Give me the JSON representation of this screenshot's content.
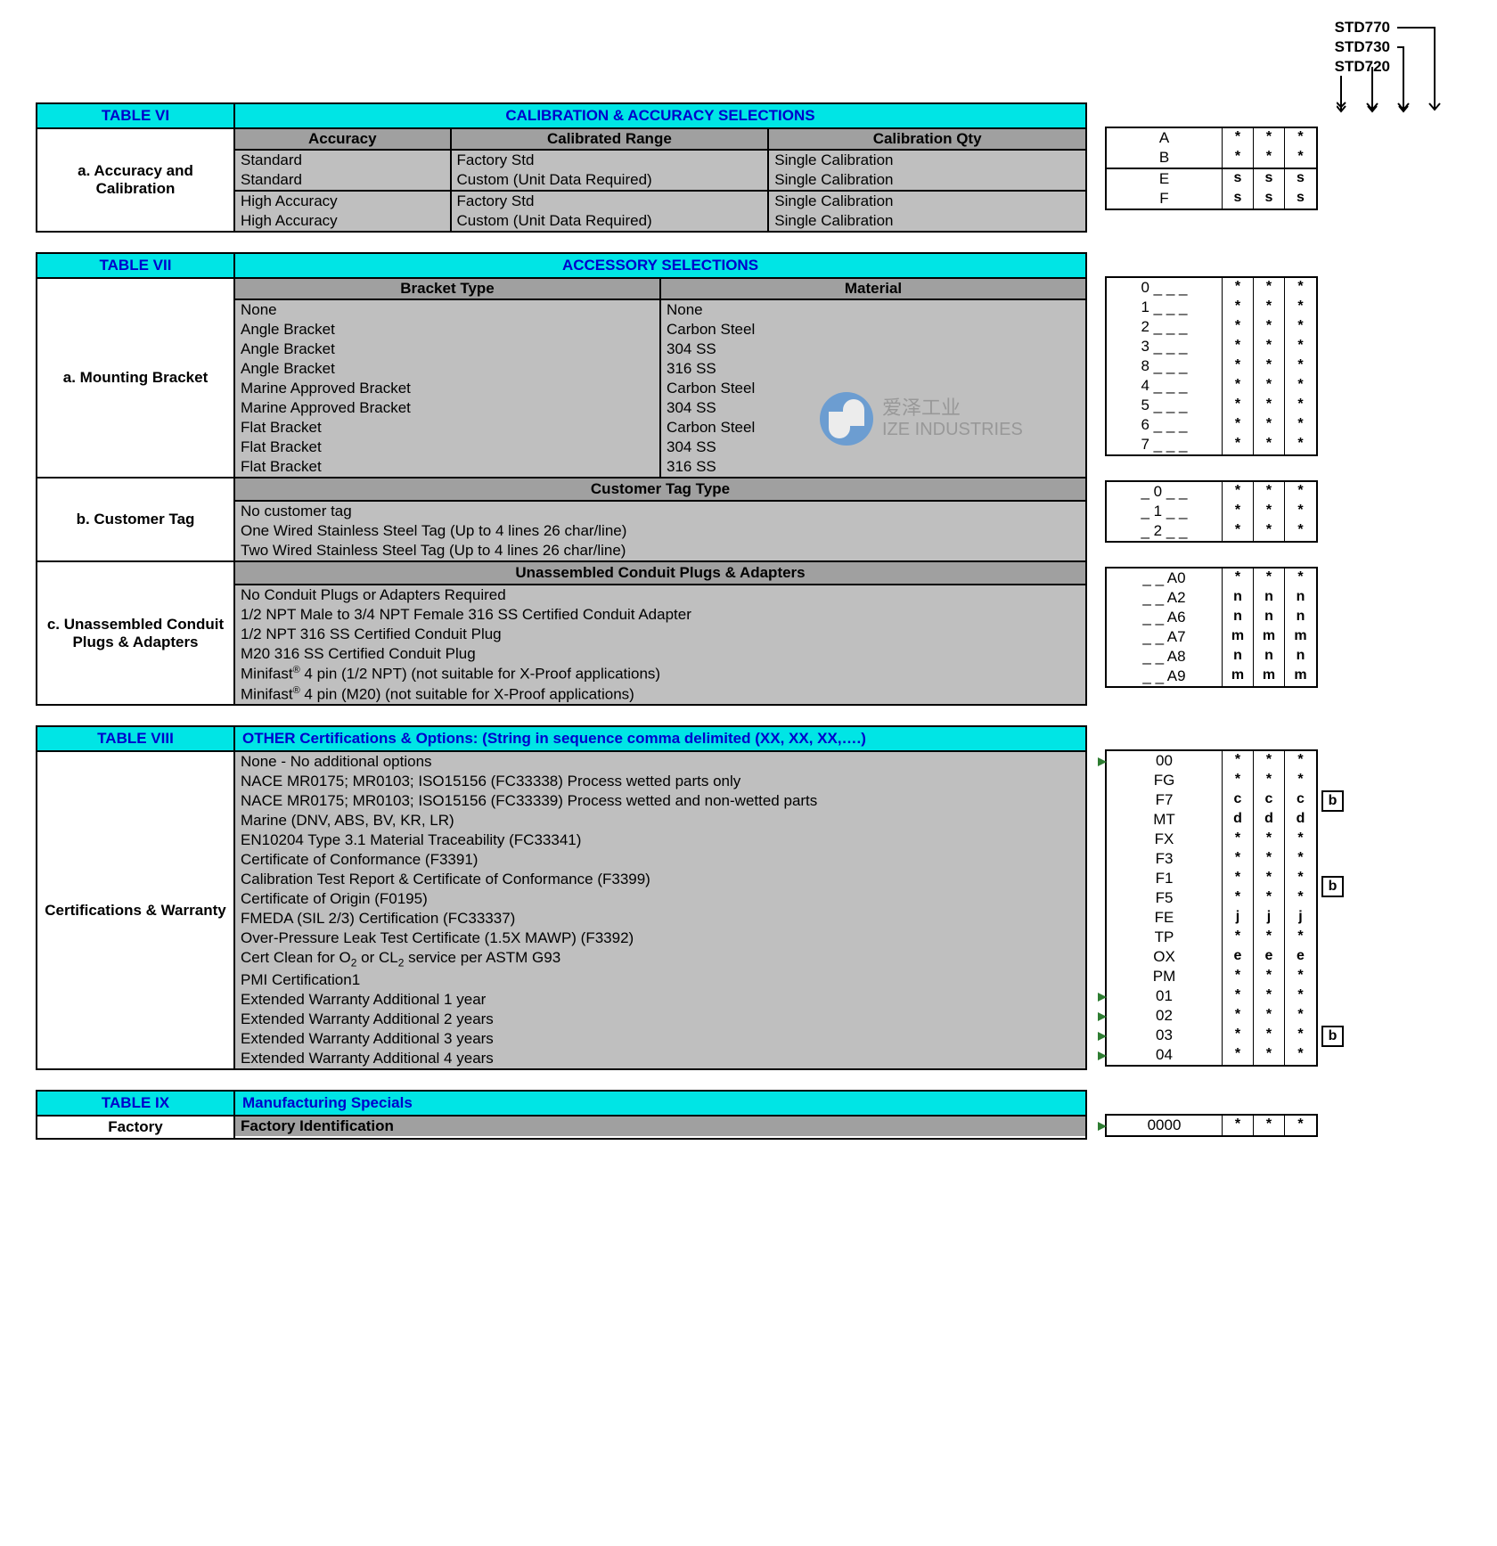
{
  "colors": {
    "cyan": "#00E5E5",
    "blue_text": "#0000CC",
    "grey_hdr": "#A0A0A0",
    "grey_body": "#BFBFBF",
    "border": "#000000",
    "green": "#2E7D32",
    "wm_blue": "#4A90D9",
    "wm_grey": "#888888"
  },
  "header": {
    "models": [
      "STD770",
      "STD730",
      "STD720"
    ]
  },
  "table6": {
    "title": "TABLE VI",
    "banner": "CALIBRATION & ACCURACY SELECTIONS",
    "section": "a. Accuracy and Calibration",
    "cols": [
      "Accuracy",
      "Calibrated Range",
      "Calibration Qty"
    ],
    "rows": [
      {
        "c": [
          "Standard",
          "Factory Std",
          "Single Calibration"
        ],
        "code": "A",
        "m": [
          "*",
          "*",
          "*"
        ]
      },
      {
        "c": [
          "Standard",
          "Custom (Unit Data Required)",
          "Single Calibration"
        ],
        "code": "B",
        "m": [
          "*",
          "*",
          "*"
        ],
        "sep": true
      },
      {
        "c": [
          "High Accuracy",
          "Factory Std",
          "Single Calibration"
        ],
        "code": "E",
        "m": [
          "s",
          "s",
          "s"
        ]
      },
      {
        "c": [
          "High Accuracy",
          "Custom (Unit Data Required)",
          "Single Calibration"
        ],
        "code": "F",
        "m": [
          "s",
          "s",
          "s"
        ]
      }
    ]
  },
  "table7": {
    "title": "TABLE VII",
    "banner": "ACCESSORY SELECTIONS",
    "secA": {
      "label": "a. Mounting Bracket",
      "cols": [
        "Bracket Type",
        "Material"
      ],
      "rows": [
        {
          "c": [
            "None",
            "None"
          ],
          "code": "0 _ _ _",
          "m": [
            "*",
            "*",
            "*"
          ]
        },
        {
          "c": [
            "Angle Bracket",
            "Carbon Steel"
          ],
          "code": "1 _ _ _",
          "m": [
            "*",
            "*",
            "*"
          ]
        },
        {
          "c": [
            "Angle Bracket",
            "304 SS"
          ],
          "code": "2 _ _ _",
          "m": [
            "*",
            "*",
            "*"
          ]
        },
        {
          "c": [
            "Angle Bracket",
            "316 SS"
          ],
          "code": "3 _ _ _",
          "m": [
            "*",
            "*",
            "*"
          ]
        },
        {
          "c": [
            "Marine Approved  Bracket",
            "Carbon Steel"
          ],
          "code": "8 _ _ _",
          "m": [
            "*",
            "*",
            "*"
          ]
        },
        {
          "c": [
            "Marine Approved Bracket",
            "304 SS"
          ],
          "code": "4 _ _ _",
          "m": [
            "*",
            "*",
            "*"
          ]
        },
        {
          "c": [
            "Flat Bracket",
            "Carbon Steel"
          ],
          "code": "5 _ _ _",
          "m": [
            "*",
            "*",
            "*"
          ]
        },
        {
          "c": [
            "Flat Bracket",
            "304 SS"
          ],
          "code": "6 _ _ _",
          "m": [
            "*",
            "*",
            "*"
          ]
        },
        {
          "c": [
            "Flat Bracket",
            "316 SS"
          ],
          "code": "7 _ _ _",
          "m": [
            "*",
            "*",
            "*"
          ]
        }
      ]
    },
    "secB": {
      "label": "b. Customer Tag",
      "hdr": "Customer Tag Type",
      "rows": [
        {
          "c": "No customer tag",
          "code": "_ 0 _ _",
          "m": [
            "*",
            "*",
            "*"
          ]
        },
        {
          "c": "One Wired Stainless Steel Tag (Up to 4 lines 26 char/line)",
          "code": "_ 1 _ _",
          "m": [
            "*",
            "*",
            "*"
          ]
        },
        {
          "c": "Two Wired Stainless Steel Tag (Up to 4 lines 26 char/line)",
          "code": "_ 2 _ _",
          "m": [
            "*",
            "*",
            "*"
          ]
        }
      ]
    },
    "secC": {
      "label": "c. Unassembled Conduit Plugs & Adapters",
      "hdr": "Unassembled Conduit Plugs & Adapters",
      "rows": [
        {
          "c": "No Conduit Plugs or Adapters Required",
          "code": "_ _ A0",
          "m": [
            "*",
            "*",
            "*"
          ]
        },
        {
          "c": "1/2 NPT Male to 3/4 NPT Female 316 SS Certified Conduit Adapter",
          "code": "_ _ A2",
          "m": [
            "n",
            "n",
            "n"
          ]
        },
        {
          "c": "1/2 NPT 316 SS Certified Conduit Plug",
          "code": "_ _ A6",
          "m": [
            "n",
            "n",
            "n"
          ]
        },
        {
          "c": "M20 316 SS Certified Conduit Plug",
          "code": "_ _ A7",
          "m": [
            "m",
            "m",
            "m"
          ]
        },
        {
          "html": "Minifast<sup>®</sup> 4 pin (1/2 NPT) (not suitable for X-Proof applications)",
          "code": "_ _ A8",
          "m": [
            "n",
            "n",
            "n"
          ]
        },
        {
          "html": "Minifast<sup>®</sup> 4 pin (M20) (not suitable for X-Proof applications)",
          "code": "_ _ A9",
          "m": [
            "m",
            "m",
            "m"
          ]
        }
      ]
    }
  },
  "table8": {
    "title": "TABLE VIII",
    "banner": "OTHER Certifications & Options:  (String in sequence comma delimited (XX, XX, XX,….)",
    "label": "Certifications & Warranty",
    "rows": [
      {
        "c": "None - No additional options",
        "code": "00",
        "m": [
          "*",
          "*",
          "*"
        ],
        "tri": true
      },
      {
        "c": "NACE MR0175; MR0103; ISO15156 (FC33338) Process wetted parts only",
        "code": "FG",
        "m": [
          "*",
          "*",
          "*"
        ]
      },
      {
        "c": "NACE MR0175; MR0103; ISO15156 (FC33339) Process wetted and non-wetted parts",
        "code": "F7",
        "m": [
          "c",
          "c",
          "c"
        ],
        "b": true
      },
      {
        "c": "Marine (DNV, ABS, BV, KR, LR)",
        "code": "MT",
        "m": [
          "d",
          "d",
          "d"
        ]
      },
      {
        "c": "EN10204 Type 3.1 Material Traceability (FC33341)",
        "code": "FX",
        "m": [
          "*",
          "*",
          "*"
        ]
      },
      {
        "c": "Certificate of Conformance (F3391)",
        "code": "F3",
        "m": [
          "*",
          "*",
          "*"
        ]
      },
      {
        "c": "Calibration Test Report & Certificate of Conformance (F3399)",
        "code": "F1",
        "m": [
          "*",
          "*",
          "*"
        ],
        "b": true
      },
      {
        "c": "Certificate of Origin (F0195)",
        "code": "F5",
        "m": [
          "*",
          "*",
          "*"
        ]
      },
      {
        "c": "FMEDA (SIL 2/3) Certification (FC33337)",
        "code": "FE",
        "m": [
          "j",
          "j",
          "j"
        ]
      },
      {
        "c": "Over-Pressure Leak Test Certificate (1.5X MAWP) (F3392)",
        "code": "TP",
        "m": [
          "*",
          "*",
          "*"
        ]
      },
      {
        "html": "Cert Clean for O<sub>2</sub> or CL<sub>2</sub> service per ASTM G93",
        "code": "OX",
        "m": [
          "e",
          "e",
          "e"
        ]
      },
      {
        "c": "PMI Certification1",
        "code": "PM",
        "m": [
          "*",
          "*",
          "*"
        ]
      },
      {
        "c": "Extended Warranty Additional 1 year",
        "code": "01",
        "m": [
          "*",
          "*",
          "*"
        ],
        "tri": true
      },
      {
        "c": "Extended Warranty Additional 2 years",
        "code": "02",
        "m": [
          "*",
          "*",
          "*"
        ],
        "tri": true,
        "b": true
      },
      {
        "c": "Extended Warranty Additional 3 years",
        "code": "03",
        "m": [
          "*",
          "*",
          "*"
        ],
        "tri": true
      },
      {
        "c": "Extended Warranty Additional 4 years",
        "code": "04",
        "m": [
          "*",
          "*",
          "*"
        ],
        "tri": true
      }
    ]
  },
  "table9": {
    "title": "TABLE IX",
    "banner": "Manufacturing Specials",
    "label": "Factory",
    "row": {
      "c": "Factory Identification",
      "code": "0000",
      "m": [
        "*",
        "*",
        "*"
      ],
      "tri": true
    }
  },
  "watermark": {
    "cn": "爱泽工业",
    "en": "IZE INDUSTRIES"
  }
}
